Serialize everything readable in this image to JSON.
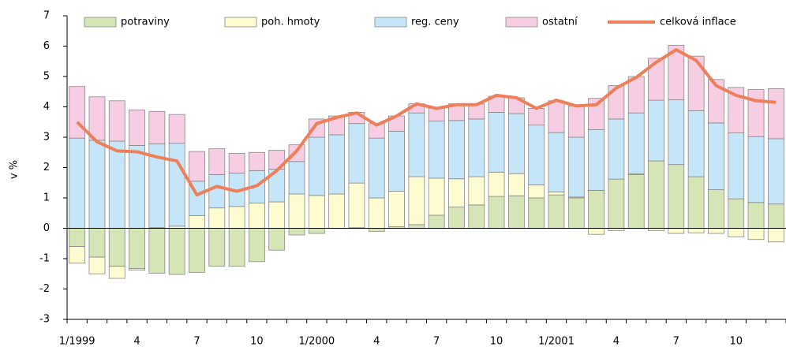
{
  "chart_data": {
    "type": "bar",
    "y_label": "v  %",
    "categories": [
      "1/1999",
      null,
      null,
      "4",
      null,
      null,
      "7",
      null,
      null,
      "10",
      null,
      null,
      "1/2000",
      null,
      null,
      "4",
      null,
      null,
      "7",
      null,
      null,
      "10",
      null,
      null,
      "1/2001",
      null,
      null,
      "4",
      null,
      null,
      "7",
      null,
      null,
      "10",
      null,
      null
    ],
    "series": [
      {
        "name": "potraviny",
        "color": "#d6e5b5",
        "values": [
          -0.6,
          -0.95,
          -1.25,
          -1.33,
          -1.48,
          -1.52,
          -1.45,
          -1.25,
          -1.25,
          -1.1,
          -0.72,
          -0.22,
          -0.17,
          0.0,
          0.02,
          -0.1,
          0.05,
          0.12,
          0.43,
          0.7,
          0.77,
          1.05,
          1.07,
          1.0,
          1.1,
          1.0,
          1.25,
          1.62,
          1.77,
          2.22,
          2.1,
          1.7,
          1.27,
          0.97,
          0.85,
          0.8
        ]
      },
      {
        "name": "poh. hmoty",
        "color": "#fdfbd0",
        "values": [
          -0.55,
          -0.55,
          -0.4,
          -0.05,
          0.02,
          0.07,
          0.42,
          0.67,
          0.72,
          0.83,
          0.87,
          1.13,
          1.08,
          1.13,
          1.47,
          1.0,
          1.17,
          1.58,
          1.22,
          0.93,
          0.93,
          0.8,
          0.73,
          0.43,
          0.1,
          0.03,
          -0.2,
          -0.08,
          0.03,
          -0.08,
          -0.17,
          -0.15,
          -0.17,
          -0.28,
          -0.37,
          -0.45
        ]
      },
      {
        "name": "reg. ceny",
        "color": "#c5e6f8",
        "values": [
          2.97,
          2.9,
          2.87,
          2.73,
          2.76,
          2.73,
          1.13,
          1.1,
          1.1,
          1.07,
          1.08,
          1.07,
          1.92,
          1.95,
          1.96,
          1.97,
          1.98,
          2.1,
          1.88,
          1.92,
          1.9,
          1.97,
          1.98,
          1.97,
          1.95,
          1.97,
          2.0,
          1.98,
          2.0,
          2.0,
          2.13,
          2.17,
          2.2,
          2.17,
          2.17,
          2.15
        ]
      },
      {
        "name": "ostatní",
        "color": "#f7cde3",
        "values": [
          1.7,
          1.43,
          1.33,
          1.17,
          1.07,
          0.95,
          0.98,
          0.85,
          0.65,
          0.6,
          0.62,
          0.55,
          0.6,
          0.62,
          0.37,
          0.48,
          0.5,
          0.3,
          0.42,
          0.55,
          0.5,
          0.53,
          0.52,
          0.55,
          1.05,
          1.03,
          1.03,
          1.1,
          1.2,
          1.38,
          1.8,
          1.8,
          1.43,
          1.5,
          1.55,
          1.65
        ]
      },
      {
        "name": "celková inflace",
        "type": "line",
        "color": "#ef7f5a",
        "values": [
          3.5,
          2.85,
          2.55,
          2.52,
          2.35,
          2.22,
          1.1,
          1.38,
          1.22,
          1.4,
          1.9,
          2.55,
          3.45,
          3.65,
          3.8,
          3.4,
          3.7,
          4.1,
          3.95,
          4.07,
          4.07,
          4.38,
          4.3,
          3.95,
          4.22,
          4.03,
          4.07,
          4.62,
          4.97,
          5.47,
          5.88,
          5.53,
          4.7,
          4.38,
          4.2,
          4.15
        ]
      }
    ],
    "ylim": [
      -3,
      7
    ],
    "yticks": [
      -3,
      -2,
      -1,
      0,
      1,
      2,
      3,
      4,
      5,
      6,
      7
    ],
    "stacked": true,
    "legend": "top"
  }
}
